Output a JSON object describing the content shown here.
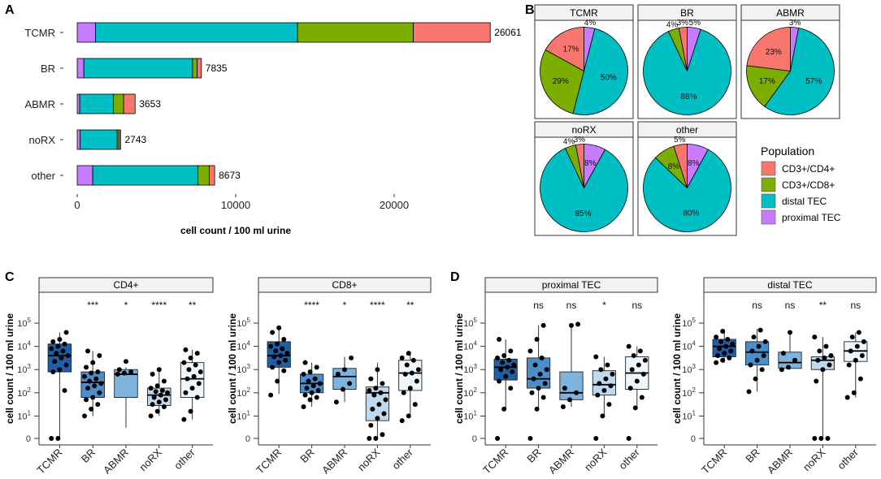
{
  "colors": {
    "cd4": "#F8766D",
    "cd8": "#7CAE00",
    "distal": "#00BFC4",
    "proximal": "#C77CFF",
    "box": [
      "#1F5FA8",
      "#4A8FCC",
      "#7EB3DD",
      "#BFD9EE",
      "#EEF5FB"
    ]
  },
  "chart_data": [
    {
      "panel": "A",
      "type": "bar",
      "orientation": "horizontal",
      "stacked": true,
      "categories": [
        "TCMR",
        "BR",
        "ABMR",
        "noRX",
        "other"
      ],
      "series": [
        {
          "name": "proximal TEC",
          "values": [
            1150,
            420,
            160,
            190,
            980
          ]
        },
        {
          "name": "distal TEC",
          "values": [
            12750,
            6860,
            2130,
            2330,
            6640
          ]
        },
        {
          "name": "CD3+/CD8+",
          "values": [
            7310,
            290,
            640,
            120,
            710
          ]
        },
        {
          "name": "CD3+/CD4+",
          "values": [
            4851,
            265,
            723,
            103,
            343
          ]
        }
      ],
      "totals": [
        "26061",
        "7835",
        "3653",
        "2743",
        "8673"
      ],
      "xlabel": "cell count / 100 ml urine",
      "xticks": [
        "0",
        "10000",
        "20000"
      ],
      "xtick_values": [
        0,
        10000,
        20000
      ],
      "xlim": [
        0,
        27500
      ]
    },
    {
      "panel": "B",
      "type": "pie",
      "series_order": [
        "CD3+/CD4+",
        "CD3+/CD8+",
        "distal TEC",
        "proximal TEC"
      ],
      "pies": [
        {
          "title": "TCMR",
          "values": [
            17,
            29,
            50,
            4
          ],
          "labels": [
            "17%",
            "29%",
            "50%",
            "4%"
          ]
        },
        {
          "title": "BR",
          "values": [
            3,
            4,
            88,
            5
          ],
          "labels": [
            "3%",
            "4%",
            "88%",
            "5%"
          ]
        },
        {
          "title": "ABMR",
          "values": [
            23,
            17,
            57,
            3
          ],
          "labels": [
            "23%",
            "17%",
            "57%",
            "3%"
          ]
        },
        {
          "title": "noRX",
          "values": [
            3,
            4,
            85,
            8
          ],
          "labels": [
            "3%",
            "4%",
            "85%",
            "8%"
          ]
        },
        {
          "title": "other",
          "values": [
            5,
            8,
            80,
            8
          ],
          "labels": [
            "5%",
            "8%",
            "80%",
            "8%"
          ]
        }
      ],
      "legend": {
        "title": "Population",
        "items": [
          "CD3+/CD4+",
          "CD3+/CD8+",
          "distal TEC",
          "proximal TEC"
        ],
        "position": "right"
      }
    },
    {
      "panel": "C",
      "type": "boxplot",
      "ylabel": "cell count / 100 ml urine",
      "yscale": "log10 (pseudo, 0 included)",
      "yticks": [
        "0",
        "10^1",
        "10^2",
        "10^3",
        "10^4",
        "10^5"
      ],
      "ytick_exponents": [
        1,
        2,
        3,
        4,
        5
      ],
      "categories": [
        "TCMR",
        "BR",
        "ABMR",
        "noRX",
        "other"
      ],
      "facets": [
        {
          "title": "CD4+",
          "significance": [
            "",
            "***",
            "*",
            "****",
            "**"
          ],
          "boxes": [
            {
              "min": 0,
              "q1": 2.9,
              "median": 3.6,
              "q3": 4.1,
              "max": 4.6
            },
            {
              "min": 1.0,
              "q1": 1.8,
              "median": 2.45,
              "q3": 2.9,
              "max": 3.8
            },
            {
              "min": 0.5,
              "q1": 1.8,
              "median": 2.8,
              "q3": 3.0,
              "max": 3.1
            },
            {
              "min": 1.0,
              "q1": 1.45,
              "median": 1.9,
              "q3": 2.2,
              "max": 3.0
            },
            {
              "min": 0.85,
              "q1": 1.8,
              "median": 2.6,
              "q3": 3.3,
              "max": 3.85
            }
          ],
          "points": [
            [
              0,
              0,
              2.1,
              2.9,
              3.0,
              3.2,
              3.35,
              3.5,
              3.6,
              3.7,
              3.8,
              3.9,
              4.0,
              4.1,
              4.2,
              4.3,
              4.6
            ],
            [
              1.0,
              1.3,
              1.5,
              1.7,
              1.8,
              2.0,
              2.2,
              2.3,
              2.4,
              2.5,
              2.6,
              2.7,
              2.85,
              2.9,
              3.1,
              3.3,
              3.6,
              3.8
            ],
            [
              2.8,
              2.85,
              2.9,
              3.0,
              3.35
            ],
            [
              1.0,
              1.2,
              1.4,
              1.5,
              1.6,
              1.7,
              1.8,
              1.9,
              2.0,
              2.05,
              2.1,
              2.2,
              2.3,
              2.5,
              2.8,
              3.0
            ],
            [
              0.85,
              1.2,
              1.8,
              2.0,
              2.2,
              2.4,
              2.6,
              2.7,
              2.9,
              3.0,
              3.2,
              3.3,
              3.5,
              3.7,
              3.85
            ]
          ]
        },
        {
          "title": "CD8+",
          "significance": [
            "",
            "****",
            "*",
            "****",
            "**"
          ],
          "boxes": [
            {
              "min": 1.95,
              "q1": 3.1,
              "median": 3.6,
              "q3": 4.2,
              "max": 4.85
            },
            {
              "min": 1.4,
              "q1": 2.0,
              "median": 2.4,
              "q3": 2.8,
              "max": 3.3
            },
            {
              "min": 1.6,
              "q1": 2.15,
              "median": 2.7,
              "q3": 3.05,
              "max": 3.55
            },
            {
              "min": 0,
              "q1": 0.8,
              "median": 2.0,
              "q3": 2.25,
              "max": 3.3
            },
            {
              "min": 1.0,
              "q1": 2.1,
              "median": 2.85,
              "q3": 3.4,
              "max": 3.7
            }
          ],
          "points": [
            [
              1.9,
              2.5,
              2.95,
              3.1,
              3.3,
              3.4,
              3.55,
              3.6,
              3.7,
              3.8,
              3.9,
              4.0,
              4.1,
              4.3,
              4.6,
              4.8
            ],
            [
              1.4,
              1.7,
              1.8,
              1.9,
              2.0,
              2.1,
              2.2,
              2.3,
              2.4,
              2.5,
              2.6,
              2.8,
              2.9,
              3.1,
              3.3
            ],
            [
              1.6,
              2.15,
              2.4,
              2.8,
              3.0,
              3.5
            ],
            [
              0,
              0,
              0.2,
              0.6,
              0.9,
              1.1,
              1.3,
              1.5,
              1.7,
              1.9,
              2.0,
              2.1,
              2.2,
              2.4,
              2.6,
              3.0
            ],
            [
              0.8,
              1.0,
              1.5,
              2.0,
              2.2,
              2.5,
              2.8,
              2.85,
              3.0,
              3.2,
              3.4,
              3.5,
              3.7
            ]
          ]
        }
      ]
    },
    {
      "panel": "D",
      "type": "boxplot",
      "ylabel": "cell count / 100 ml urine",
      "yscale": "log10 (pseudo, 0 included)",
      "yticks": [
        "0",
        "10^1",
        "10^2",
        "10^3",
        "10^4",
        "10^5"
      ],
      "ytick_exponents": [
        1,
        2,
        3,
        4,
        5
      ],
      "categories": [
        "TCMR",
        "BR",
        "ABMR",
        "noRX",
        "other"
      ],
      "facets": [
        {
          "title": "proximal TEC",
          "significance": [
            "",
            "ns",
            "ns",
            "*",
            "ns"
          ],
          "boxes": [
            {
              "min": 1.3,
              "q1": 2.55,
              "median": 3.1,
              "q3": 3.45,
              "max": 4.3
            },
            {
              "min": 1.3,
              "q1": 2.2,
              "median": 2.6,
              "q3": 3.5,
              "max": 4.9
            },
            {
              "min": 1.4,
              "q1": 1.7,
              "median": 2.0,
              "q3": 2.9,
              "max": 4.9
            },
            {
              "min": 1.0,
              "q1": 1.9,
              "median": 2.35,
              "q3": 2.95,
              "max": 3.55
            },
            {
              "min": 1.35,
              "q1": 2.15,
              "median": 2.85,
              "q3": 3.55,
              "max": 4.0
            }
          ],
          "points": [
            [
              0,
              1.3,
              2.2,
              2.5,
              2.7,
              2.9,
              3.0,
              3.1,
              3.2,
              3.3,
              3.4,
              3.5,
              3.6,
              3.8,
              4.3
            ],
            [
              0,
              1.3,
              1.8,
              2.0,
              2.2,
              2.4,
              2.6,
              2.8,
              3.0,
              3.2,
              3.5,
              3.8,
              4.3,
              4.9
            ],
            [
              1.4,
              1.7,
              2.0,
              2.2,
              4.9,
              4.95
            ],
            [
              0,
              1.0,
              1.5,
              1.9,
              2.1,
              2.3,
              2.4,
              2.6,
              2.8,
              3.0,
              3.2,
              3.55
            ],
            [
              0,
              1.35,
              1.8,
              2.2,
              2.5,
              2.8,
              3.0,
              3.2,
              3.4,
              3.6,
              3.8,
              4.0
            ]
          ]
        },
        {
          "title": "distal TEC",
          "significance": [
            "",
            "ns",
            "ns",
            "**",
            "ns"
          ],
          "boxes": [
            {
              "min": 3.3,
              "q1": 3.55,
              "median": 4.0,
              "q3": 4.3,
              "max": 4.65
            },
            {
              "min": 2.05,
              "q1": 3.2,
              "median": 3.75,
              "q3": 4.2,
              "max": 4.75
            },
            {
              "min": 3.0,
              "q1": 3.05,
              "median": 3.3,
              "q3": 3.75,
              "max": 4.6
            },
            {
              "min": 0,
              "q1": 3.0,
              "median": 3.4,
              "q3": 3.55,
              "max": 4.4
            },
            {
              "min": 1.8,
              "q1": 3.35,
              "median": 3.8,
              "q3": 4.2,
              "max": 4.6
            }
          ],
          "points": [
            [
              3.3,
              3.4,
              3.5,
              3.6,
              3.7,
              3.8,
              3.9,
              4.0,
              4.1,
              4.2,
              4.3,
              4.4,
              4.65
            ],
            [
              2.05,
              2.6,
              3.0,
              3.2,
              3.4,
              3.6,
              3.8,
              4.0,
              4.2,
              4.4,
              4.7
            ],
            [
              3.0,
              3.1,
              3.4,
              3.7,
              4.6
            ],
            [
              0,
              0,
              0,
              2.5,
              3.0,
              3.2,
              3.4,
              3.5,
              3.6,
              3.8,
              4.0,
              4.4
            ],
            [
              1.8,
              2.0,
              2.6,
              3.2,
              3.4,
              3.6,
              3.8,
              4.0,
              4.2,
              4.4,
              4.6
            ]
          ]
        }
      ]
    }
  ]
}
